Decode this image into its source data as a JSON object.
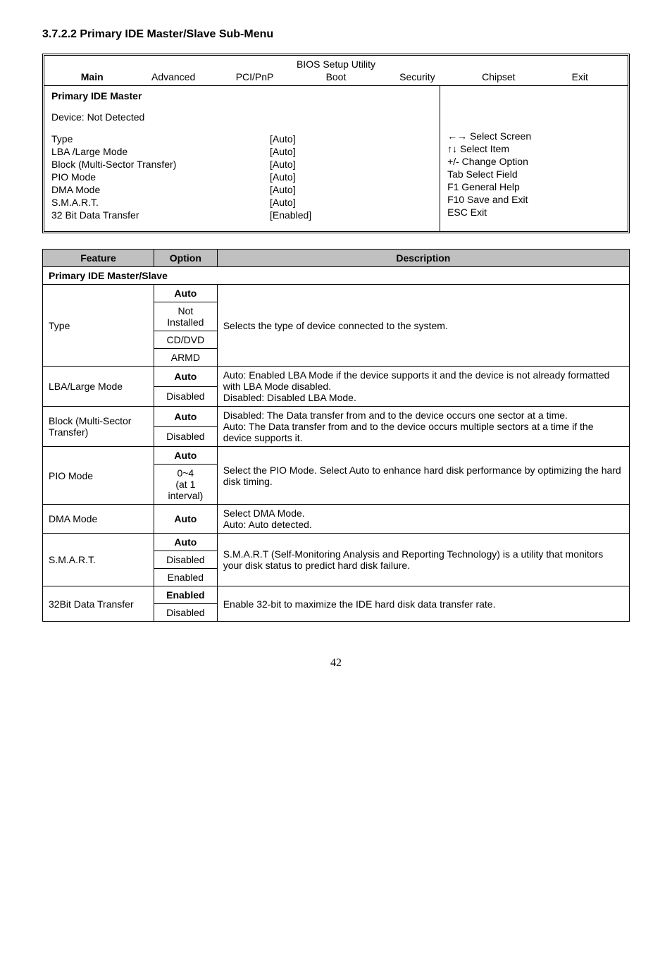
{
  "section_title": "3.7.2.2 Primary IDE Master/Slave Sub-Menu",
  "bios": {
    "title": "BIOS Setup Utility",
    "menu": [
      "Main",
      "Advanced",
      "PCI/PnP",
      "Boot",
      "Security",
      "Chipset",
      "Exit"
    ],
    "heading": "Primary IDE Master",
    "device_line": "Device: Not Detected",
    "settings": [
      {
        "label": "Type",
        "value": "[Auto]"
      },
      {
        "label": "LBA /Large Mode",
        "value": "[Auto]"
      },
      {
        "label": "Block (Multi-Sector Transfer)",
        "value": "[Auto]"
      },
      {
        "label": "PIO Mode",
        "value": "[Auto]"
      },
      {
        "label": "DMA Mode",
        "value": "[Auto]"
      },
      {
        "label": "S.M.A.R.T.",
        "value": "[Auto]"
      },
      {
        "label": "32 Bit Data Transfer",
        "value": "[Enabled]"
      }
    ],
    "help": [
      "←→ Select Screen",
      "↑↓ Select Item",
      "+/-    Change Option",
      "Tab   Select Field",
      "F1     General Help",
      "F10   Save and Exit",
      "ESC  Exit"
    ]
  },
  "feat_headers": [
    "Feature",
    "Option",
    "Description"
  ],
  "feat_section": "Primary IDE Master/Slave",
  "type_row": {
    "feature": "Type",
    "opts": [
      "Auto",
      "Not Installed",
      "CD/DVD",
      "ARMD"
    ],
    "desc": "Selects the type of device connected to the system."
  },
  "lba_row": {
    "feature": "LBA/Large Mode",
    "opts": [
      "Auto",
      "Disabled"
    ],
    "desc": "Auto: Enabled LBA Mode if the device supports it and the device is not already formatted with LBA Mode disabled.\nDisabled: Disabled LBA Mode."
  },
  "block_row": {
    "feature": "Block (Multi-Sector Transfer)",
    "opts": [
      "Auto",
      "Disabled"
    ],
    "desc": "Disabled: The Data transfer from and to the device occurs one sector at a time.\nAuto: The Data transfer from and to the device occurs multiple sectors at a time if the device supports it."
  },
  "pio_row": {
    "feature": "PIO Mode",
    "opts": [
      "Auto",
      "0~4\n(at 1 interval)"
    ],
    "desc": "Select the PIO Mode. Select Auto to enhance hard disk performance by optimizing the hard disk timing."
  },
  "dma_row": {
    "feature": "DMA Mode",
    "opts": [
      "Auto"
    ],
    "desc": "Select DMA Mode.\nAuto: Auto detected."
  },
  "smart_row": {
    "feature": "S.M.A.R.T.",
    "opts": [
      "Auto",
      "Disabled",
      "Enabled"
    ],
    "desc": "S.M.A.R.T (Self-Monitoring Analysis and Reporting Technology) is a utility that monitors your disk status to predict hard disk failure."
  },
  "bit32_row": {
    "feature": "32Bit Data Transfer",
    "opts": [
      "Enabled",
      "Disabled"
    ],
    "desc": "Enable 32-bit to maximize the IDE hard disk data transfer rate."
  },
  "page_number": "42"
}
